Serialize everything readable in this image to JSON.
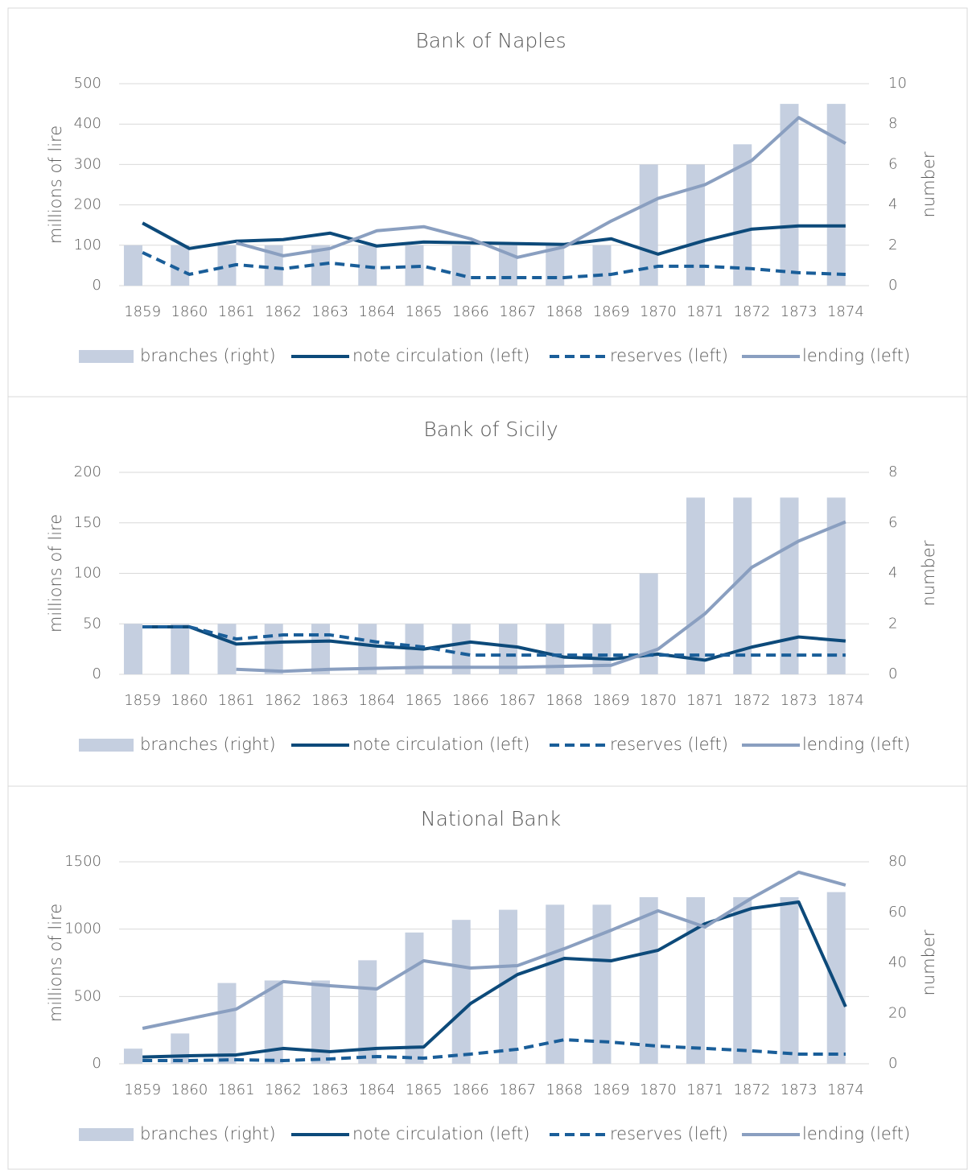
{
  "chart_data": [
    {
      "type": "combo",
      "title": "Bank of Naples",
      "ylabel": "millions of lire",
      "y2label": "number",
      "categories": [
        "1859",
        "1860",
        "1861",
        "1862",
        "1863",
        "1864",
        "1865",
        "1866",
        "1867",
        "1868",
        "1869",
        "1870",
        "1871",
        "1872",
        "1873",
        "1874"
      ],
      "ylim": [
        0,
        500
      ],
      "yticks": [
        0,
        100,
        200,
        300,
        400,
        500
      ],
      "y2lim": [
        0,
        10
      ],
      "y2ticks": [
        0,
        2,
        4,
        6,
        8,
        10
      ],
      "grid": true,
      "legend": "bottom",
      "series": [
        {
          "name": "branches (right)",
          "kind": "bar",
          "axis": "y2",
          "color": "#c5cfe0",
          "values": [
            2,
            2,
            2,
            2,
            2,
            2,
            2,
            2,
            2,
            2,
            2,
            6,
            6,
            7,
            9,
            9
          ]
        },
        {
          "name": "note circulation (left)",
          "kind": "line",
          "color": "#0d4a7a",
          "dashed": false,
          "values": [
            155,
            92,
            110,
            114,
            130,
            98,
            108,
            106,
            104,
            102,
            116,
            78,
            112,
            140,
            148,
            148
          ]
        },
        {
          "name": "reserves (left)",
          "kind": "line",
          "color": "#1a5e99",
          "dashed": true,
          "values": [
            82,
            28,
            52,
            42,
            56,
            44,
            48,
            20,
            20,
            20,
            28,
            48,
            48,
            42,
            32,
            28
          ]
        },
        {
          "name": "lending (left)",
          "kind": "line",
          "color": "#8a9fc0",
          "dashed": false,
          "values": [
            null,
            null,
            106,
            74,
            92,
            136,
            146,
            116,
            70,
            96,
            160,
            216,
            250,
            310,
            416,
            352
          ]
        }
      ]
    },
    {
      "type": "combo",
      "title": "Bank of Sicily",
      "ylabel": "millions of lire",
      "y2label": "number",
      "categories": [
        "1859",
        "1860",
        "1861",
        "1862",
        "1863",
        "1864",
        "1865",
        "1866",
        "1867",
        "1868",
        "1869",
        "1870",
        "1871",
        "1872",
        "1873",
        "1874"
      ],
      "ylim": [
        0,
        200
      ],
      "yticks": [
        0,
        50,
        100,
        150,
        200
      ],
      "y2lim": [
        0,
        8
      ],
      "y2ticks": [
        0,
        2,
        4,
        6,
        8
      ],
      "grid": true,
      "legend": "bottom",
      "series": [
        {
          "name": "branches (right)",
          "kind": "bar",
          "axis": "y2",
          "color": "#c5cfe0",
          "values": [
            2,
            2,
            2,
            2,
            2,
            2,
            2,
            2,
            2,
            2,
            2,
            4,
            7,
            7,
            7,
            7
          ]
        },
        {
          "name": "note circulation (left)",
          "kind": "line",
          "color": "#0d4a7a",
          "dashed": false,
          "values": [
            47,
            47,
            30,
            32,
            33,
            28,
            25,
            32,
            27,
            17,
            15,
            20,
            14,
            27,
            37,
            33
          ]
        },
        {
          "name": "reserves (left)",
          "kind": "line",
          "color": "#1a5e99",
          "dashed": true,
          "values": [
            47,
            47,
            35,
            39,
            39,
            32,
            27,
            19,
            19,
            19,
            19,
            19,
            19,
            19,
            19,
            19
          ]
        },
        {
          "name": "lending (left)",
          "kind": "line",
          "color": "#8a9fc0",
          "dashed": false,
          "values": [
            null,
            null,
            5,
            3,
            5,
            6,
            7,
            7,
            7,
            8,
            9,
            25,
            60,
            106,
            132,
            151
          ]
        }
      ]
    },
    {
      "type": "combo",
      "title": "National Bank",
      "ylabel": "millions of lire",
      "y2label": "number",
      "categories": [
        "1859",
        "1860",
        "1861",
        "1862",
        "1863",
        "1864",
        "1865",
        "1866",
        "1867",
        "1868",
        "1869",
        "1870",
        "1871",
        "1872",
        "1873",
        "1874"
      ],
      "ylim": [
        0,
        1500
      ],
      "yticks": [
        0,
        500,
        1000,
        1500
      ],
      "y2lim": [
        0,
        80
      ],
      "y2ticks": [
        0,
        20,
        40,
        60,
        80
      ],
      "grid": true,
      "legend": "bottom",
      "series": [
        {
          "name": "branches (right)",
          "kind": "bar",
          "axis": "y2",
          "color": "#c5cfe0",
          "values": [
            6,
            12,
            32,
            33,
            33,
            41,
            52,
            57,
            61,
            63,
            63,
            66,
            66,
            66,
            66,
            68
          ]
        },
        {
          "name": "note circulation (left)",
          "kind": "line",
          "color": "#0d4a7a",
          "dashed": false,
          "values": [
            50,
            60,
            66,
            114,
            90,
            114,
            125,
            448,
            663,
            783,
            765,
            843,
            1040,
            1154,
            1201,
            424
          ]
        },
        {
          "name": "reserves (left)",
          "kind": "line",
          "color": "#1a5e99",
          "dashed": true,
          "values": [
            24,
            24,
            30,
            24,
            36,
            54,
            42,
            72,
            108,
            179,
            161,
            131,
            114,
            96,
            72,
            72
          ]
        },
        {
          "name": "lending (left)",
          "kind": "line",
          "color": "#8a9fc0",
          "dashed": false,
          "values": [
            263,
            335,
            406,
            610,
            580,
            556,
            765,
            711,
            729,
            855,
            992,
            1136,
            1016,
            1231,
            1423,
            1327
          ]
        }
      ]
    }
  ]
}
